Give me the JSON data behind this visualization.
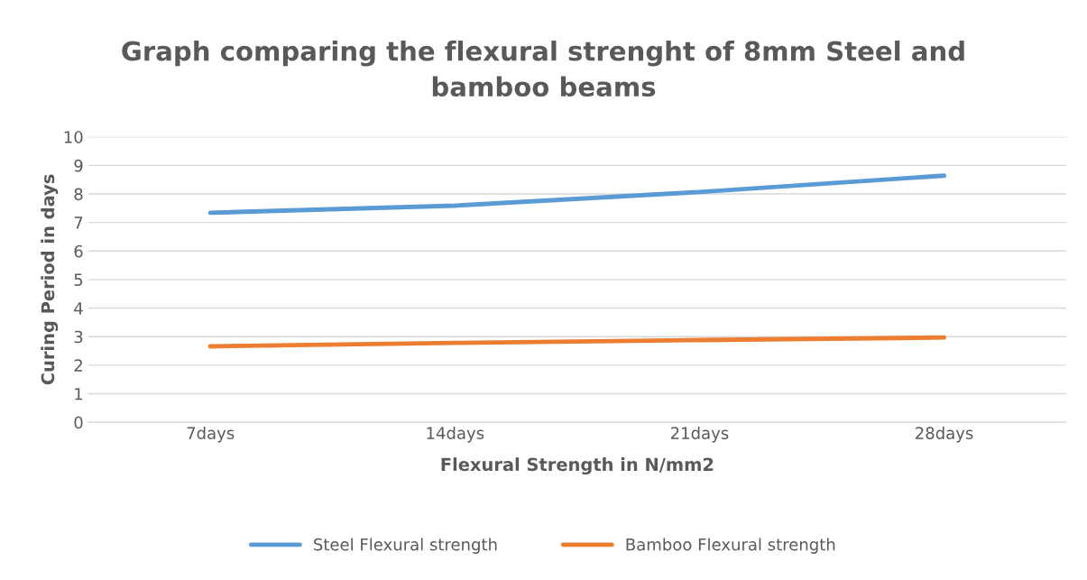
{
  "chart_data": {
    "type": "line",
    "title": "Graph comparing the flexural strenght of 8mm Steel and\nbamboo beams",
    "xlabel": "Flexural Strength in N/mm2",
    "ylabel": "Curing Period in days",
    "categories": [
      "7days",
      "14days",
      "21days",
      "28days"
    ],
    "series": [
      {
        "name": "Steel Flexural strength",
        "color": "#5b9bd5",
        "values": [
          7.34,
          7.59,
          8.07,
          8.64
        ]
      },
      {
        "name": "Bamboo Flexural strength",
        "color": "#ed7d31",
        "values": [
          2.66,
          2.78,
          2.88,
          2.97
        ]
      }
    ],
    "ylim": [
      0,
      10
    ],
    "yticks": [
      0,
      1,
      2,
      3,
      4,
      5,
      6,
      7,
      8,
      9,
      10
    ],
    "grid": "y",
    "legend": "bottom",
    "line_style": "solid",
    "marker": "none"
  }
}
